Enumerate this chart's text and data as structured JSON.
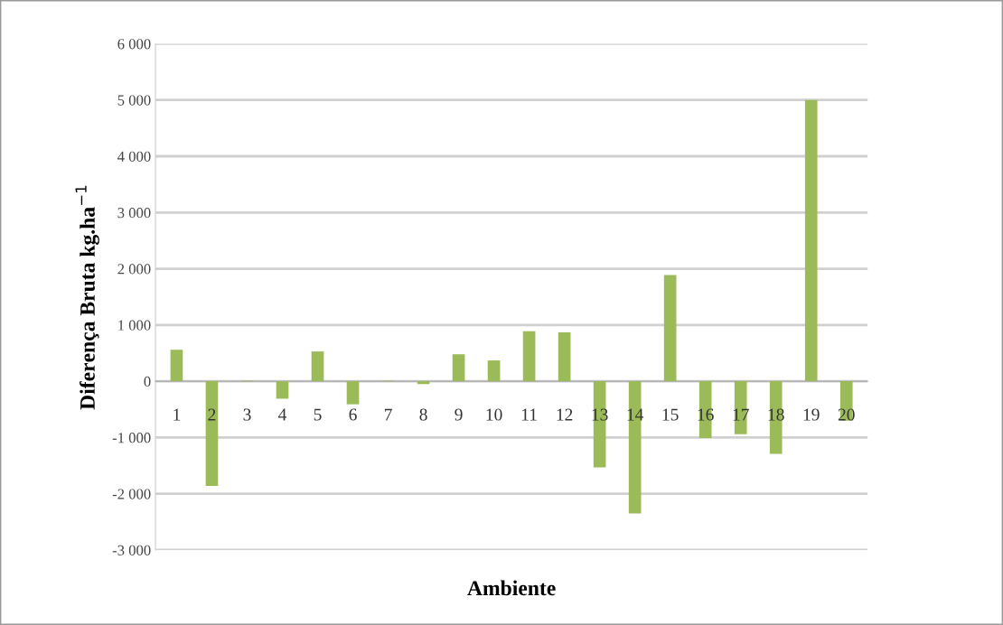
{
  "chart_data": {
    "type": "bar",
    "xlabel": "Ambiente",
    "ylabel": "Diferença Bruta kg.ha$^{−1}$",
    "categories": [
      "1",
      "2",
      "3",
      "4",
      "5",
      "6",
      "7",
      "8",
      "9",
      "10",
      "11",
      "12",
      "13",
      "14",
      "15",
      "16",
      "17",
      "18",
      "19",
      "20"
    ],
    "values": [
      560,
      -1860,
      10,
      -310,
      530,
      -410,
      10,
      -50,
      480,
      370,
      890,
      870,
      -1530,
      -2350,
      1890,
      -1010,
      -940,
      -1290,
      5000,
      -700
    ],
    "color": "#9bbb59",
    "ylim": [
      -3000,
      6000
    ],
    "yticks": [
      {
        "value": -3000,
        "label": "-3 000"
      },
      {
        "value": -2000,
        "label": "-2 000"
      },
      {
        "value": -1000,
        "label": "-1 000"
      },
      0,
      {
        "value": 1000,
        "label": "1 000"
      },
      {
        "value": 2000,
        "label": "2 000"
      },
      {
        "value": 3000,
        "label": "3 000"
      },
      {
        "value": 4000,
        "label": "4 000"
      },
      {
        "value": 5000,
        "label": "5 000"
      },
      {
        "value": 6000,
        "label": "6 000"
      }
    ],
    "grid": "y"
  }
}
